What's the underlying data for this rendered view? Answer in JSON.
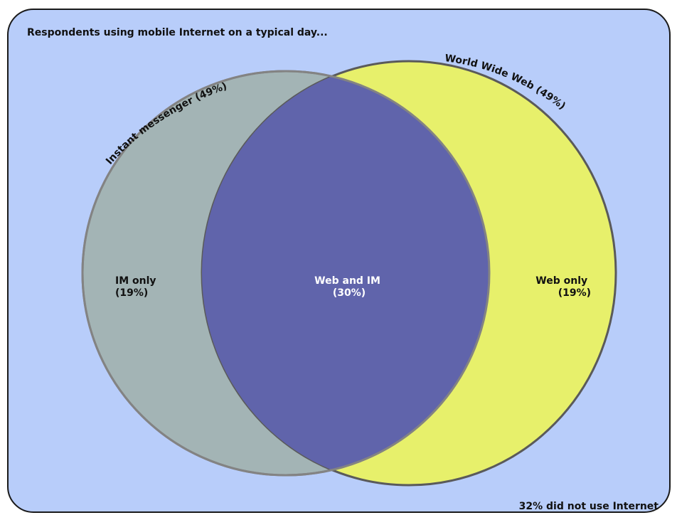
{
  "title": "Respondents using mobile Internet on a typical day...",
  "footnote": "32% did not use Internet",
  "sets": {
    "im": {
      "label": "Instant messenger (49%)",
      "percent": 49,
      "fill": "#a3b4b5",
      "stroke": "#838383"
    },
    "web": {
      "label": "World Wide Web (49%)",
      "percent": 49,
      "fill": "#e7f06b",
      "stroke": "#5a5a5a"
    }
  },
  "regions": {
    "im_only": {
      "line1": "IM only",
      "line2": "(19%)",
      "percent": 19
    },
    "both": {
      "line1": "Web and IM",
      "line2": "(30%)",
      "percent": 30,
      "fill": "#6064ab"
    },
    "web_only": {
      "line1": "Web only",
      "line2": "(19%)",
      "percent": 19
    }
  },
  "colors": {
    "panel": "#b8cdfa",
    "panel_border": "#1a1a1a",
    "text_dark": "#111111",
    "text_light": "#ffffff"
  }
}
